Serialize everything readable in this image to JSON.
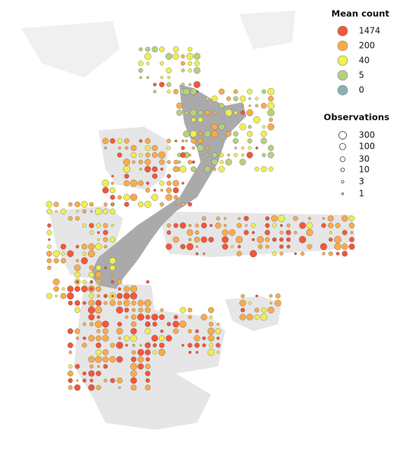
{
  "legend": {
    "mean_count": {
      "title": "Mean count",
      "entries": [
        {
          "label": "1474",
          "color": "#f4563a"
        },
        {
          "label": "200",
          "color": "#f9ab4c"
        },
        {
          "label": "40",
          "color": "#eeee55"
        },
        {
          "label": "5",
          "color": "#b6d07f"
        },
        {
          "label": "0",
          "color": "#8db0b2"
        }
      ]
    },
    "observations": {
      "title": "Observations",
      "entries": [
        {
          "label": "300"
        },
        {
          "label": "100"
        },
        {
          "label": "30"
        },
        {
          "label": "10"
        },
        {
          "label": "3"
        },
        {
          "label": "1"
        }
      ]
    }
  }
}
